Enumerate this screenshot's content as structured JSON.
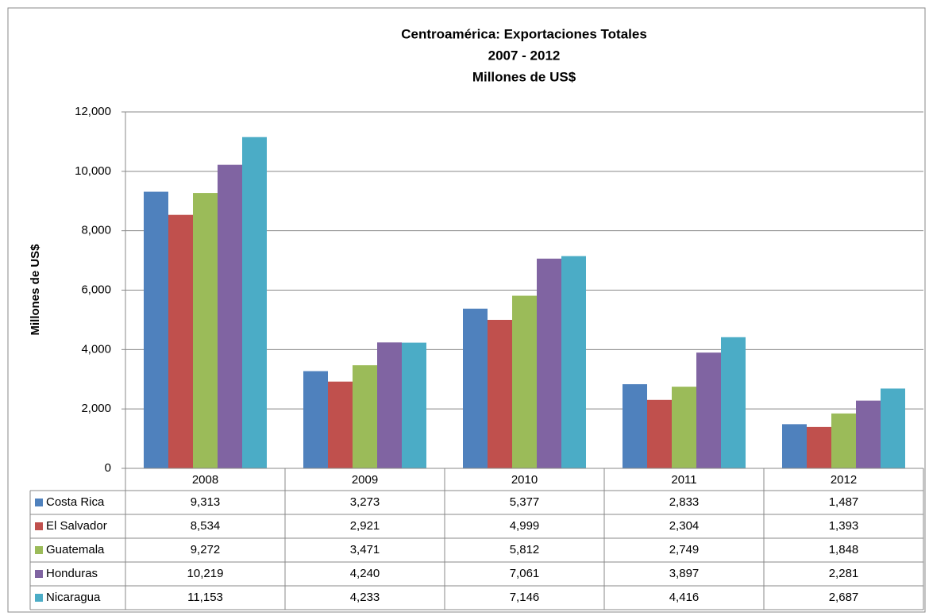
{
  "chart_data": {
    "type": "bar",
    "title": [
      "Centroamérica: Exportaciones Totales",
      "2007 - 2012",
      "Millones de US$"
    ],
    "y_label": "Millones de US$",
    "categories": [
      "2008",
      "2009",
      "2010",
      "2011",
      "2012"
    ],
    "series": [
      {
        "name": "Costa Rica",
        "color": "#4f81bd",
        "values": [
          9313,
          3273,
          5377,
          2833,
          1487
        ],
        "value_labels": [
          "9,313",
          "3,273",
          "5,377",
          "2,833",
          "1,487"
        ]
      },
      {
        "name": "El Salvador",
        "color": "#c0504d",
        "values": [
          8534,
          2921,
          4999,
          2304,
          1393
        ],
        "value_labels": [
          "8,534",
          "2,921",
          "4,999",
          "2,304",
          "1,393"
        ]
      },
      {
        "name": "Guatemala",
        "color": "#9bbb59",
        "values": [
          9272,
          3471,
          5812,
          2749,
          1848
        ],
        "value_labels": [
          "9,272",
          "3,471",
          "5,812",
          "2,749",
          "1,848"
        ]
      },
      {
        "name": "Honduras",
        "color": "#8064a2",
        "values": [
          10219,
          4240,
          7061,
          3897,
          2281
        ],
        "value_labels": [
          "10,219",
          "4,240",
          "7,061",
          "3,897",
          "2,281"
        ]
      },
      {
        "name": "Nicaragua",
        "color": "#4bacc6",
        "values": [
          11153,
          4233,
          7146,
          4416,
          2687
        ],
        "value_labels": [
          "11,153",
          "4,233",
          "7,146",
          "4,416",
          "2,687"
        ]
      }
    ],
    "ylim": [
      0,
      12000
    ],
    "yticks": [
      0,
      {
        "value": 2000,
        "label": "2,000"
      },
      {
        "value": 4000,
        "label": "4,000"
      },
      {
        "value": 6000,
        "label": "6,000"
      },
      {
        "value": 8000,
        "label": "8,000"
      },
      {
        "value": 10000,
        "label": "10,000"
      },
      {
        "value": 12000,
        "label": "12,000"
      }
    ],
    "grid": true
  }
}
